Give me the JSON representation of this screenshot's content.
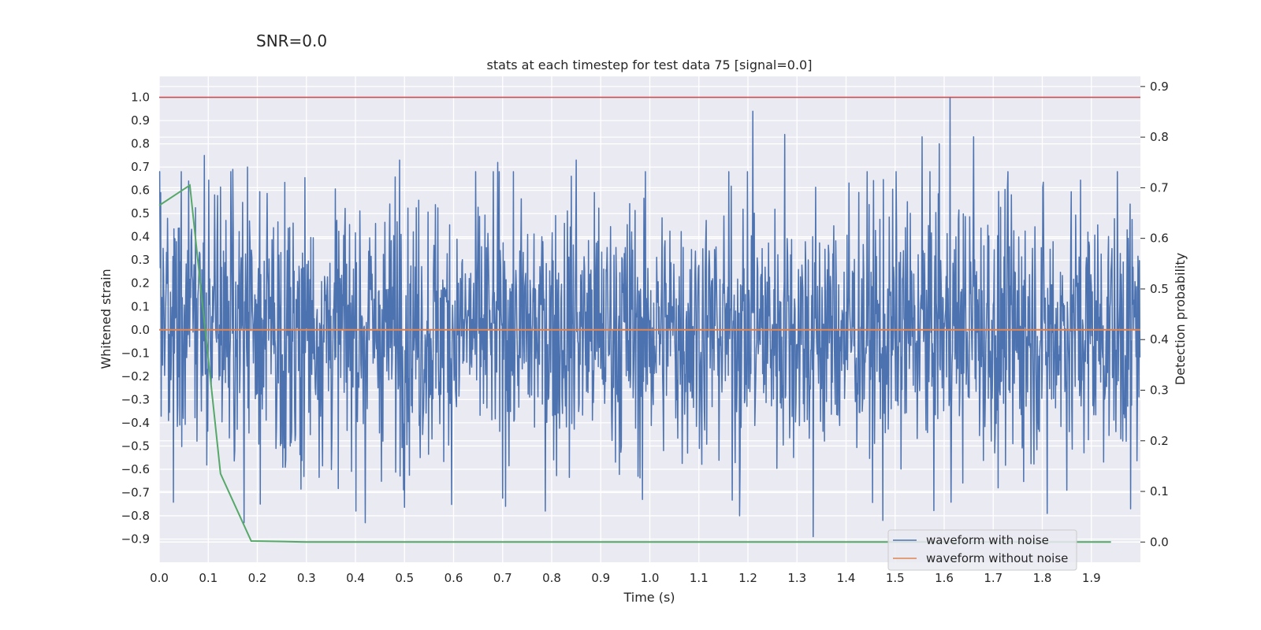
{
  "figure": {
    "title": "SNR=0.0"
  },
  "chart_data": {
    "type": "line",
    "title": "stats at each timestep for test data 75 [signal=0.0]",
    "xlabel": "Time (s)",
    "ylabel": "Whitened strain",
    "y2label": "Detection probability",
    "xlim": [
      0.0,
      2.0
    ],
    "ylim": [
      -1.0,
      1.09
    ],
    "y2lim": [
      -0.04,
      0.92
    ],
    "x_ticks": [
      "0.0",
      "0.1",
      "0.2",
      "0.3",
      "0.4",
      "0.5",
      "0.6",
      "0.7",
      "0.8",
      "0.9",
      "1.0",
      "1.1",
      "1.2",
      "1.3",
      "1.4",
      "1.5",
      "1.6",
      "1.7",
      "1.8",
      "1.9"
    ],
    "y_ticks": [
      "1.0",
      "0.9",
      "0.8",
      "0.7",
      "0.6",
      "0.5",
      "0.4",
      "0.3",
      "0.2",
      "0.1",
      "0.0",
      "−0.1",
      "−0.2",
      "−0.3",
      "−0.4",
      "−0.5",
      "−0.6",
      "−0.7",
      "−0.8",
      "−0.9"
    ],
    "y2_ticks": [
      "0.9",
      "0.8",
      "0.7",
      "0.6",
      "0.5",
      "0.4",
      "0.3",
      "0.2",
      "0.1",
      "0.0"
    ],
    "grid": true,
    "legend_position": "lower-right",
    "series": [
      {
        "name": "waveform with noise",
        "axis": "left",
        "color": "#4c72b0",
        "noise": {
          "samples": 2000,
          "std": 0.28,
          "seed": 75
        },
        "peaks": [
          {
            "t": 0.003,
            "v": 0.59
          },
          {
            "t": 0.06,
            "v": 0.64
          },
          {
            "t": 0.092,
            "v": 0.75
          },
          {
            "t": 0.15,
            "v": 0.69
          },
          {
            "t": 0.18,
            "v": 0.7
          },
          {
            "t": 0.173,
            "v": -0.83
          },
          {
            "t": 0.42,
            "v": -0.83
          },
          {
            "t": 0.49,
            "v": 0.73
          },
          {
            "t": 0.69,
            "v": 0.72
          },
          {
            "t": 0.85,
            "v": 0.73
          },
          {
            "t": 0.985,
            "v": -0.73
          },
          {
            "t": 1.183,
            "v": -0.8
          },
          {
            "t": 1.21,
            "v": 0.94
          },
          {
            "t": 1.275,
            "v": 0.84
          },
          {
            "t": 1.333,
            "v": -0.89
          },
          {
            "t": 1.475,
            "v": -0.82
          },
          {
            "t": 1.555,
            "v": 0.83
          },
          {
            "t": 1.59,
            "v": 0.8
          },
          {
            "t": 1.612,
            "v": 1.0
          },
          {
            "t": 1.66,
            "v": 0.83
          },
          {
            "t": 1.71,
            "v": -0.68
          },
          {
            "t": 1.81,
            "v": -0.79
          },
          {
            "t": 1.98,
            "v": -0.77
          }
        ]
      },
      {
        "name": "waveform without noise",
        "axis": "left",
        "color": "#dd8452",
        "x": [
          0.0,
          2.0
        ],
        "y": [
          0.0,
          0.0
        ]
      },
      {
        "name": "detection probability",
        "axis": "right",
        "color": "#55a868",
        "x": [
          0.0,
          0.0625,
          0.125,
          0.1875,
          0.25,
          0.3,
          1.94
        ],
        "y": [
          0.665,
          0.705,
          0.135,
          0.002,
          0.001,
          0.0,
          0.0
        ]
      }
    ],
    "threshold": {
      "value": 1.0,
      "color": "#c44e52"
    }
  }
}
